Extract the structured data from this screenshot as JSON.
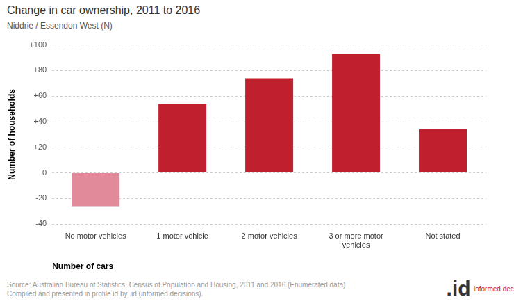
{
  "chart_data": {
    "type": "bar",
    "title": "Change in car ownership, 2011 to 2016",
    "subtitle": "Niddrie / Essendon West (N)",
    "x_label": "Number of cars",
    "y_label": "Number of households",
    "categories": [
      "No motor vehicles",
      "1 motor vehicle",
      "2 motor vehicles",
      "3 or more motor vehicles",
      "Not stated"
    ],
    "values": [
      -26,
      54,
      74,
      93,
      34
    ],
    "colors": [
      "#e08a9a",
      "#c0202e",
      "#c0202e",
      "#c0202e",
      "#c0202e"
    ],
    "ylim": [
      -40,
      100
    ],
    "yticks": [
      {
        "value": -40,
        "label": "-40"
      },
      {
        "value": -20,
        "label": "-20"
      },
      0,
      {
        "value": 20,
        "label": "+20"
      },
      {
        "value": 40,
        "label": "+40"
      },
      {
        "value": 60,
        "label": "+60"
      },
      {
        "value": 80,
        "label": "+80"
      },
      {
        "value": 100,
        "label": "+100"
      }
    ],
    "grid": true,
    "source": [
      "Source: Australian Bureau of Statistics, Census of Population and Housing, 2011 and 2016 (Enumerated data)",
      "Compiled and presented in profile.id by .id (informed decisions)."
    ],
    "logo": ".id",
    "logo_text": "informed decisions"
  }
}
